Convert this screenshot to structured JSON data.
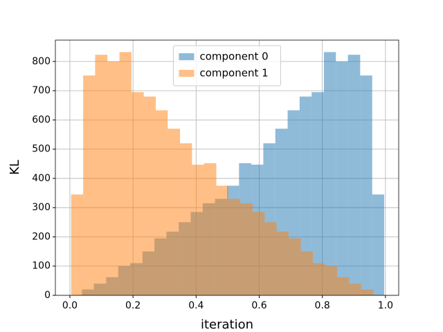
{
  "chart_data": {
    "type": "histogram",
    "xlabel": "iteration",
    "ylabel": "KL",
    "series": [
      {
        "name": "component 0",
        "color": "#1f77b4",
        "bins": [
          0.038,
          0.076,
          0.115,
          0.153,
          0.191,
          0.23,
          0.268,
          0.306,
          0.345,
          0.383,
          0.421,
          0.46,
          0.498,
          0.536,
          0.575,
          0.613,
          0.651,
          0.69,
          0.728,
          0.766,
          0.805,
          0.843,
          0.881,
          0.92,
          0.958,
          0.996
        ],
        "values": [
          20,
          40,
          62,
          100,
          110,
          150,
          195,
          218,
          250,
          285,
          315,
          330,
          375,
          452,
          447,
          520,
          570,
          633,
          680,
          695,
          832,
          800,
          823,
          752,
          345
        ]
      },
      {
        "name": "component 1",
        "color": "#ff7f0e",
        "bins": [
          0.004,
          0.042,
          0.08,
          0.119,
          0.157,
          0.195,
          0.234,
          0.272,
          0.31,
          0.349,
          0.387,
          0.425,
          0.464,
          0.502,
          0.54,
          0.579,
          0.617,
          0.655,
          0.693,
          0.732,
          0.77,
          0.808,
          0.847,
          0.885,
          0.923,
          0.962
        ],
        "values": [
          345,
          752,
          823,
          800,
          832,
          695,
          680,
          633,
          570,
          520,
          447,
          452,
          375,
          330,
          315,
          285,
          250,
          218,
          195,
          150,
          110,
          100,
          62,
          40,
          20
        ]
      }
    ],
    "opacity": 0.5,
    "xlim": [
      -0.046,
      1.042
    ],
    "xticks": [
      {
        "value": 0,
        "label": "0.0"
      },
      0.2,
      0.4,
      0.6,
      0.8,
      {
        "value": 1,
        "label": "1.0"
      }
    ],
    "ylim": [
      0,
      873
    ],
    "yticks": [
      0,
      100,
      200,
      300,
      400,
      500,
      600,
      700,
      800
    ],
    "grid": true,
    "legend": "upper center"
  }
}
